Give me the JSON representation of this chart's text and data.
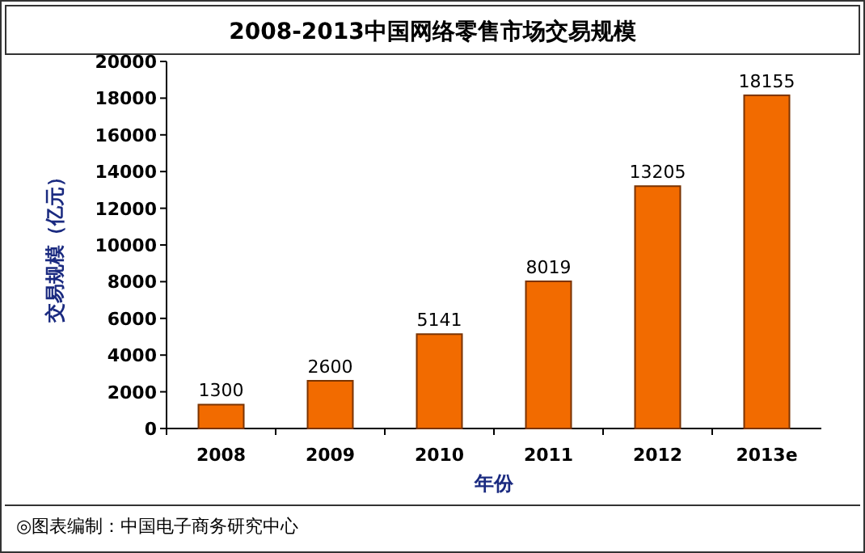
{
  "chart_data": {
    "type": "bar",
    "title": "2008-2013中国网络零售市场交易规模",
    "xlabel": "年份",
    "ylabel": "交易规模（亿元）",
    "categories": [
      "2008",
      "2009",
      "2010",
      "2011",
      "2012",
      "2013e"
    ],
    "values": [
      1300,
      2600,
      5141,
      8019,
      13205,
      18155
    ],
    "color": "#f26b00",
    "ylim": [
      0,
      20000
    ],
    "yticks": [
      0,
      2000,
      4000,
      6000,
      8000,
      10000,
      12000,
      14000,
      16000,
      18000,
      20000
    ],
    "data_labels": true,
    "annotations": [
      "◎图表编制：中国电子商务研究中心"
    ]
  }
}
